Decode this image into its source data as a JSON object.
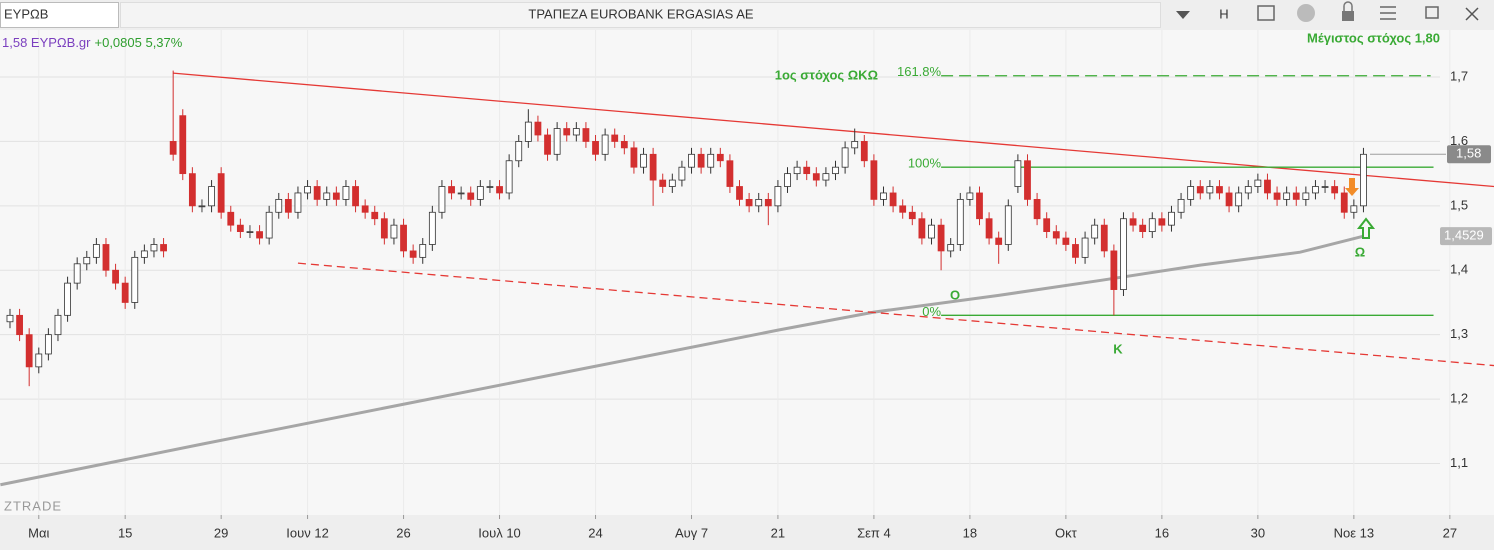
{
  "toolbar": {
    "symbol": "ΕΥΡΩΒ",
    "title": "ΤΡΑΠΕΖΑ EUROBANK ERGASIAS AE",
    "button": "H"
  },
  "chart_data": {
    "type": "candlestick",
    "info": {
      "price": "1,58 ΕΥΡΩΒ.gr",
      "change": "+0,0805 5,37%"
    },
    "up_color": "#ffffff",
    "down_color": "#d32f2f",
    "flat_color": "#444444",
    "ylim": [
      1.02,
      1.773
    ],
    "yticks": [
      {
        "value": 1.1,
        "label": "1,1"
      },
      {
        "value": 1.2,
        "label": "1,2"
      },
      {
        "value": 1.3,
        "label": "1,3"
      },
      {
        "value": 1.4,
        "label": "1,4"
      },
      {
        "value": 1.5,
        "label": "1,5"
      },
      {
        "value": 1.6,
        "label": "1,6"
      },
      {
        "value": 1.7,
        "label": "1,7"
      }
    ],
    "xlim": [
      -1.04,
      154.6
    ],
    "xticks": [
      {
        "value": 3,
        "label": "Μαι"
      },
      {
        "value": 12,
        "label": "15"
      },
      {
        "value": 22,
        "label": "29"
      },
      {
        "value": 31,
        "label": "Ιουν 12"
      },
      {
        "value": 41,
        "label": "26"
      },
      {
        "value": 51,
        "label": "Ιουλ 10"
      },
      {
        "value": 61,
        "label": "24"
      },
      {
        "value": 71,
        "label": "Αυγ 7"
      },
      {
        "value": 80,
        "label": "21"
      },
      {
        "value": 90,
        "label": "Σεπ 4"
      },
      {
        "value": 100,
        "label": "18"
      },
      {
        "value": 110,
        "label": "Οκτ"
      },
      {
        "value": 120,
        "label": "16"
      },
      {
        "value": 130,
        "label": "30"
      },
      {
        "value": 140,
        "label": "Νοε 13"
      },
      {
        "value": 150,
        "label": "27"
      }
    ],
    "grid": true,
    "ohlc": [
      [
        1.32,
        1.34,
        1.31,
        1.33
      ],
      [
        1.33,
        1.34,
        1.29,
        1.3
      ],
      [
        1.3,
        1.31,
        1.22,
        1.25
      ],
      [
        1.25,
        1.28,
        1.24,
        1.27
      ],
      [
        1.27,
        1.31,
        1.26,
        1.3
      ],
      [
        1.3,
        1.34,
        1.29,
        1.33
      ],
      [
        1.33,
        1.39,
        1.32,
        1.38
      ],
      [
        1.38,
        1.42,
        1.37,
        1.41
      ],
      [
        1.41,
        1.43,
        1.4,
        1.42
      ],
      [
        1.42,
        1.45,
        1.41,
        1.44
      ],
      [
        1.44,
        1.45,
        1.39,
        1.4
      ],
      [
        1.4,
        1.41,
        1.37,
        1.38
      ],
      [
        1.38,
        1.39,
        1.34,
        1.35
      ],
      [
        1.35,
        1.43,
        1.34,
        1.42
      ],
      [
        1.42,
        1.44,
        1.41,
        1.43
      ],
      [
        1.43,
        1.45,
        1.42,
        1.44
      ],
      [
        1.44,
        1.45,
        1.42,
        1.43
      ],
      [
        1.6,
        1.71,
        1.57,
        1.58
      ],
      [
        1.64,
        1.65,
        1.54,
        1.55
      ],
      [
        1.55,
        1.56,
        1.49,
        1.5
      ],
      [
        1.5,
        1.51,
        1.49,
        1.5
      ],
      [
        1.5,
        1.54,
        1.49,
        1.53
      ],
      [
        1.55,
        1.56,
        1.48,
        1.49
      ],
      [
        1.49,
        1.5,
        1.46,
        1.47
      ],
      [
        1.47,
        1.48,
        1.45,
        1.46
      ],
      [
        1.46,
        1.47,
        1.45,
        1.46
      ],
      [
        1.46,
        1.47,
        1.44,
        1.45
      ],
      [
        1.45,
        1.5,
        1.44,
        1.49
      ],
      [
        1.49,
        1.52,
        1.48,
        1.51
      ],
      [
        1.51,
        1.52,
        1.48,
        1.49
      ],
      [
        1.49,
        1.53,
        1.48,
        1.52
      ],
      [
        1.52,
        1.54,
        1.51,
        1.53
      ],
      [
        1.53,
        1.54,
        1.5,
        1.51
      ],
      [
        1.51,
        1.53,
        1.5,
        1.52
      ],
      [
        1.52,
        1.53,
        1.5,
        1.51
      ],
      [
        1.51,
        1.54,
        1.5,
        1.53
      ],
      [
        1.53,
        1.54,
        1.49,
        1.5
      ],
      [
        1.5,
        1.51,
        1.48,
        1.49
      ],
      [
        1.49,
        1.5,
        1.47,
        1.48
      ],
      [
        1.48,
        1.49,
        1.44,
        1.45
      ],
      [
        1.45,
        1.48,
        1.44,
        1.47
      ],
      [
        1.47,
        1.48,
        1.42,
        1.43
      ],
      [
        1.43,
        1.44,
        1.41,
        1.42
      ],
      [
        1.42,
        1.45,
        1.41,
        1.44
      ],
      [
        1.44,
        1.5,
        1.43,
        1.49
      ],
      [
        1.49,
        1.54,
        1.48,
        1.53
      ],
      [
        1.53,
        1.54,
        1.51,
        1.52
      ],
      [
        1.52,
        1.53,
        1.51,
        1.52
      ],
      [
        1.52,
        1.53,
        1.5,
        1.51
      ],
      [
        1.51,
        1.54,
        1.5,
        1.53
      ],
      [
        1.53,
        1.54,
        1.52,
        1.53
      ],
      [
        1.53,
        1.54,
        1.51,
        1.52
      ],
      [
        1.52,
        1.58,
        1.51,
        1.57
      ],
      [
        1.57,
        1.61,
        1.56,
        1.6
      ],
      [
        1.6,
        1.65,
        1.59,
        1.63
      ],
      [
        1.63,
        1.64,
        1.6,
        1.61
      ],
      [
        1.61,
        1.62,
        1.57,
        1.58
      ],
      [
        1.58,
        1.63,
        1.57,
        1.62
      ],
      [
        1.62,
        1.63,
        1.6,
        1.61
      ],
      [
        1.61,
        1.63,
        1.6,
        1.62
      ],
      [
        1.62,
        1.63,
        1.59,
        1.6
      ],
      [
        1.6,
        1.61,
        1.57,
        1.58
      ],
      [
        1.58,
        1.62,
        1.57,
        1.61
      ],
      [
        1.61,
        1.62,
        1.59,
        1.6
      ],
      [
        1.6,
        1.61,
        1.58,
        1.59
      ],
      [
        1.59,
        1.6,
        1.55,
        1.56
      ],
      [
        1.56,
        1.59,
        1.55,
        1.58
      ],
      [
        1.58,
        1.59,
        1.5,
        1.54
      ],
      [
        1.54,
        1.55,
        1.52,
        1.53
      ],
      [
        1.53,
        1.55,
        1.52,
        1.54
      ],
      [
        1.54,
        1.57,
        1.53,
        1.56
      ],
      [
        1.56,
        1.59,
        1.55,
        1.58
      ],
      [
        1.58,
        1.59,
        1.55,
        1.56
      ],
      [
        1.56,
        1.59,
        1.55,
        1.58
      ],
      [
        1.58,
        1.59,
        1.56,
        1.57
      ],
      [
        1.57,
        1.58,
        1.52,
        1.53
      ],
      [
        1.53,
        1.54,
        1.5,
        1.51
      ],
      [
        1.51,
        1.52,
        1.49,
        1.5
      ],
      [
        1.5,
        1.52,
        1.49,
        1.51
      ],
      [
        1.51,
        1.52,
        1.47,
        1.5
      ],
      [
        1.5,
        1.54,
        1.49,
        1.53
      ],
      [
        1.53,
        1.56,
        1.52,
        1.55
      ],
      [
        1.55,
        1.57,
        1.54,
        1.56
      ],
      [
        1.56,
        1.57,
        1.54,
        1.55
      ],
      [
        1.55,
        1.56,
        1.53,
        1.54
      ],
      [
        1.54,
        1.56,
        1.53,
        1.55
      ],
      [
        1.55,
        1.57,
        1.54,
        1.56
      ],
      [
        1.56,
        1.6,
        1.55,
        1.59
      ],
      [
        1.59,
        1.62,
        1.58,
        1.6
      ],
      [
        1.6,
        1.61,
        1.56,
        1.57
      ],
      [
        1.57,
        1.58,
        1.5,
        1.51
      ],
      [
        1.51,
        1.53,
        1.5,
        1.52
      ],
      [
        1.52,
        1.53,
        1.49,
        1.5
      ],
      [
        1.5,
        1.51,
        1.48,
        1.49
      ],
      [
        1.49,
        1.5,
        1.47,
        1.48
      ],
      [
        1.48,
        1.49,
        1.44,
        1.45
      ],
      [
        1.45,
        1.48,
        1.44,
        1.47
      ],
      [
        1.47,
        1.48,
        1.4,
        1.43
      ],
      [
        1.43,
        1.45,
        1.42,
        1.44
      ],
      [
        1.44,
        1.52,
        1.43,
        1.51
      ],
      [
        1.51,
        1.53,
        1.5,
        1.52
      ],
      [
        1.52,
        1.53,
        1.47,
        1.48
      ],
      [
        1.48,
        1.49,
        1.44,
        1.45
      ],
      [
        1.45,
        1.46,
        1.41,
        1.44
      ],
      [
        1.44,
        1.51,
        1.43,
        1.5
      ],
      [
        1.53,
        1.58,
        1.52,
        1.57
      ],
      [
        1.57,
        1.58,
        1.5,
        1.51
      ],
      [
        1.51,
        1.52,
        1.47,
        1.48
      ],
      [
        1.48,
        1.49,
        1.45,
        1.46
      ],
      [
        1.46,
        1.47,
        1.44,
        1.45
      ],
      [
        1.45,
        1.46,
        1.43,
        1.44
      ],
      [
        1.44,
        1.45,
        1.41,
        1.42
      ],
      [
        1.42,
        1.46,
        1.41,
        1.45
      ],
      [
        1.45,
        1.48,
        1.44,
        1.47
      ],
      [
        1.47,
        1.48,
        1.42,
        1.43
      ],
      [
        1.43,
        1.44,
        1.33,
        1.37
      ],
      [
        1.37,
        1.49,
        1.36,
        1.48
      ],
      [
        1.48,
        1.49,
        1.46,
        1.47
      ],
      [
        1.47,
        1.48,
        1.45,
        1.46
      ],
      [
        1.46,
        1.49,
        1.45,
        1.48
      ],
      [
        1.48,
        1.49,
        1.46,
        1.47
      ],
      [
        1.47,
        1.5,
        1.46,
        1.49
      ],
      [
        1.49,
        1.52,
        1.48,
        1.51
      ],
      [
        1.51,
        1.54,
        1.5,
        1.53
      ],
      [
        1.53,
        1.54,
        1.51,
        1.52
      ],
      [
        1.52,
        1.54,
        1.51,
        1.53
      ],
      [
        1.53,
        1.54,
        1.51,
        1.52
      ],
      [
        1.52,
        1.53,
        1.49,
        1.5
      ],
      [
        1.5,
        1.53,
        1.49,
        1.52
      ],
      [
        1.52,
        1.54,
        1.51,
        1.53
      ],
      [
        1.53,
        1.55,
        1.52,
        1.54
      ],
      [
        1.54,
        1.55,
        1.51,
        1.52
      ],
      [
        1.52,
        1.53,
        1.5,
        1.51
      ],
      [
        1.51,
        1.53,
        1.5,
        1.52
      ],
      [
        1.52,
        1.53,
        1.5,
        1.51
      ],
      [
        1.51,
        1.53,
        1.5,
        1.52
      ],
      [
        1.52,
        1.54,
        1.51,
        1.53
      ],
      [
        1.53,
        1.54,
        1.52,
        1.53
      ],
      [
        1.53,
        1.54,
        1.51,
        1.52
      ],
      [
        1.52,
        1.53,
        1.48,
        1.49
      ],
      [
        1.49,
        1.51,
        1.48,
        1.5
      ],
      [
        1.5,
        1.59,
        1.49,
        1.58
      ]
    ],
    "last_price": {
      "value": 1.58,
      "label": "1,58"
    },
    "moving_average": {
      "color": "#a6a6a6",
      "x": [
        -1,
        20,
        40,
        60,
        80,
        90,
        103,
        113.5,
        124,
        134.4,
        141
      ],
      "values": [
        1.067,
        1.13,
        1.189,
        1.248,
        1.307,
        1.335,
        1.361,
        1.384,
        1.408,
        1.428,
        1.4529
      ],
      "last_label": "1,4529"
    },
    "trendlines": [
      {
        "color": "#e53935",
        "style": "solid",
        "x": [
          17,
          154.6
        ],
        "values": [
          1.706,
          1.53
        ]
      },
      {
        "color": "#e53935",
        "style": "dashed",
        "x": [
          30,
          154.6
        ],
        "values": [
          1.411,
          1.252
        ]
      }
    ],
    "fib_color": "#3aaa35",
    "fib_levels": [
      {
        "label": "0%",
        "value": 1.33,
        "x": [
          97,
          148.3
        ],
        "style": "solid"
      },
      {
        "label": "100%",
        "value": 1.56,
        "x": [
          97,
          148.3
        ],
        "style": "solid"
      },
      {
        "label": "161.8%",
        "value": 1.702,
        "x": [
          97,
          148
        ],
        "style": "dashed"
      }
    ],
    "annotations": [
      "Μέγιστος στόχος 1,80",
      "1ος στόχος ΩΚΩ",
      "Ο",
      "Κ",
      "Ω"
    ],
    "watermark": "ZTRADE"
  }
}
